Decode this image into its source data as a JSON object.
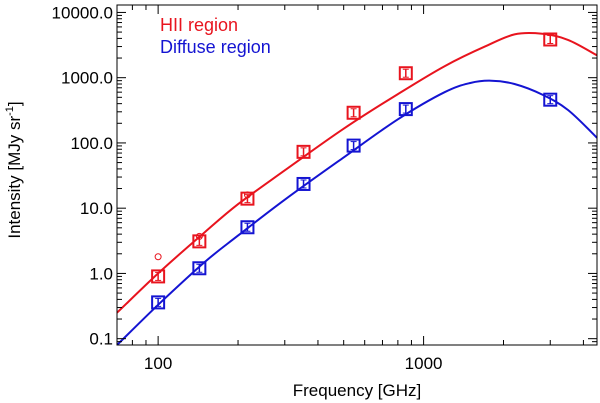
{
  "chart_data": {
    "type": "scatter",
    "title": "",
    "xlabel": "Frequency [GHz]",
    "ylabel_main": "Intensity [MJy sr",
    "ylabel_sup": "-1",
    "ylabel_close": "]",
    "xscale": "log",
    "yscale": "log",
    "xlim": [
      70,
      4500
    ],
    "ylim": [
      0.08,
      13000
    ],
    "legend_position": "top-left",
    "x_ticks": [
      {
        "value": 100,
        "label": "100"
      },
      {
        "value": 1000,
        "label": "1000"
      }
    ],
    "y_ticks": [
      {
        "value": 0.1,
        "label": "0.1"
      },
      {
        "value": 1,
        "label": "1.0"
      },
      {
        "value": 10,
        "label": "10.0"
      },
      {
        "value": 100,
        "label": "100.0"
      },
      {
        "value": 1000,
        "label": "1000.0"
      },
      {
        "value": 10000,
        "label": "10000.0"
      }
    ],
    "series": [
      {
        "name": "HII region",
        "color": "#e8141e",
        "x": [
          100,
          143,
          217,
          353,
          545,
          857,
          3000
        ],
        "y": [
          0.9,
          3.1,
          14,
          73,
          290,
          1170,
          3850
        ],
        "open_circles": [
          {
            "x": 100,
            "y": 1.8
          },
          {
            "x": 143,
            "y": 3.7
          },
          {
            "x": 217,
            "y": 16
          }
        ],
        "fit_curve": {
          "x": [
            70,
            100,
            150,
            200,
            300,
            500,
            800,
            1200,
            1700,
            2200,
            2800,
            3500,
            4500
          ],
          "y": [
            0.25,
            1.0,
            4.3,
            11.5,
            38,
            165,
            560,
            1500,
            3000,
            4600,
            4700,
            3800,
            2200
          ]
        }
      },
      {
        "name": "Diffuse region",
        "color": "#1414d2",
        "x": [
          100,
          143,
          217,
          353,
          545,
          857,
          3000
        ],
        "y": [
          0.36,
          1.2,
          5.1,
          23.5,
          91,
          330,
          460
        ],
        "open_circles": [],
        "fit_curve": {
          "x": [
            70,
            100,
            150,
            200,
            300,
            500,
            800,
            1200,
            1500,
            1800,
            2200,
            2800,
            3500,
            4500
          ],
          "y": [
            0.08,
            0.33,
            1.5,
            3.8,
            13.5,
            60,
            230,
            600,
            830,
            900,
            800,
            550,
            320,
            120
          ]
        }
      }
    ]
  }
}
